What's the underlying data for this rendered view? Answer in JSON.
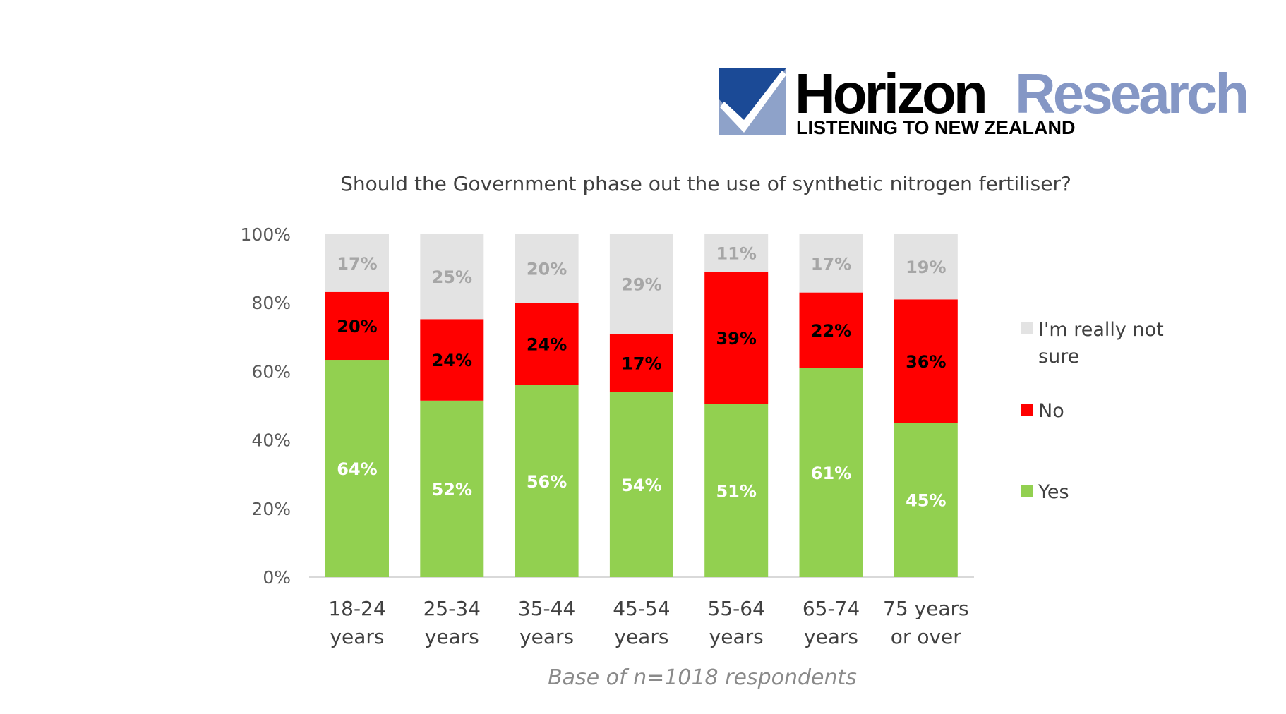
{
  "logo": {
    "brand_dark": "Horizon",
    "brand_light": "Research",
    "tagline": "LISTENING TO NEW ZEALAND",
    "colors": {
      "square": "#1b4a96",
      "check": "#8ea2c9",
      "dark_text": "#000000",
      "light_text": "#8597c5"
    }
  },
  "footnote": "Base of n=1018 respondents",
  "chart_data": {
    "type": "bar",
    "stacked": true,
    "title": "Should the Government phase out the use of synthetic nitrogen fertiliser?",
    "categories": [
      [
        "18-24",
        "years"
      ],
      [
        "25-34",
        "years"
      ],
      [
        "35-44",
        "years"
      ],
      [
        "45-54",
        "years"
      ],
      [
        "55-64",
        "years"
      ],
      [
        "65-74",
        "years"
      ],
      [
        "75 years",
        "or over"
      ]
    ],
    "series": [
      {
        "name": "Yes",
        "values": [
          64,
          52,
          56,
          54,
          51,
          61,
          45
        ],
        "color": "#92d050",
        "label_color": "#ffffff"
      },
      {
        "name": "No",
        "values": [
          20,
          24,
          24,
          17,
          39,
          22,
          36
        ],
        "color": "#ff0000",
        "label_color": "#000000"
      },
      {
        "name": "I'm really not sure",
        "values": [
          17,
          25,
          20,
          29,
          11,
          17,
          19
        ],
        "color": "#e3e3e3",
        "label_color": "#a6a6a6"
      }
    ],
    "legend_order": [
      [
        "I'm really not",
        "sure"
      ],
      [
        "No"
      ],
      [
        "Yes"
      ]
    ],
    "y_ticks": [
      "0%",
      "20%",
      "40%",
      "60%",
      "80%",
      "100%"
    ],
    "ylim": [
      0,
      100
    ],
    "legend_position": "right",
    "grid": false
  }
}
